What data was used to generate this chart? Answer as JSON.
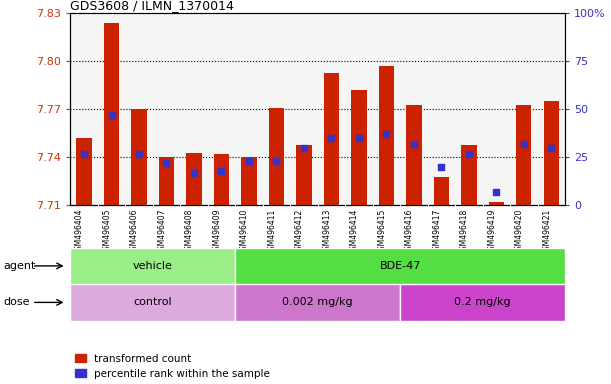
{
  "title": "GDS3608 / ILMN_1370014",
  "samples": [
    "GSM496404",
    "GSM496405",
    "GSM496406",
    "GSM496407",
    "GSM496408",
    "GSM496409",
    "GSM496410",
    "GSM496411",
    "GSM496412",
    "GSM496413",
    "GSM496414",
    "GSM496415",
    "GSM496416",
    "GSM496417",
    "GSM496418",
    "GSM496419",
    "GSM496420",
    "GSM496421"
  ],
  "bar_values": [
    7.752,
    7.824,
    7.77,
    7.74,
    7.743,
    7.742,
    7.74,
    7.771,
    7.748,
    7.793,
    7.782,
    7.797,
    7.773,
    7.728,
    7.748,
    7.712,
    7.773,
    7.775
  ],
  "blue_pct": [
    27,
    47,
    27,
    22,
    17,
    18,
    23,
    23,
    30,
    35,
    35,
    37,
    32,
    20,
    27,
    7,
    32,
    30
  ],
  "ymin": 7.71,
  "ymax": 7.83,
  "yticks": [
    7.71,
    7.74,
    7.77,
    7.8,
    7.83
  ],
  "ytick_labels": [
    "7.71",
    "7.74",
    "7.77",
    "7.80",
    "7.83"
  ],
  "right_yticks": [
    0,
    25,
    50,
    75,
    100
  ],
  "right_ytick_labels": [
    "0",
    "25",
    "50",
    "75",
    "100%"
  ],
  "bar_color": "#cc2200",
  "blue_color": "#3333cc",
  "bar_width": 0.55,
  "agent_groups": [
    {
      "label": "vehicle",
      "start": 0,
      "end": 6,
      "color": "#99ee88"
    },
    {
      "label": "BDE-47",
      "start": 6,
      "end": 18,
      "color": "#55dd44"
    }
  ],
  "dose_groups": [
    {
      "label": "control",
      "start": 0,
      "end": 6,
      "color": "#ddaadd"
    },
    {
      "label": "0.002 mg/kg",
      "start": 6,
      "end": 12,
      "color": "#cc77cc"
    },
    {
      "label": "0.2 mg/kg",
      "start": 12,
      "end": 18,
      "color": "#cc44cc"
    }
  ],
  "legend_labels": [
    "transformed count",
    "percentile rank within the sample"
  ],
  "legend_colors": [
    "#cc2200",
    "#3333cc"
  ],
  "axis_label_color_left": "#cc3300",
  "axis_label_color_right": "#3333bb",
  "plot_bg": "#f5f5f5",
  "label_bg": "#d8d8d8"
}
